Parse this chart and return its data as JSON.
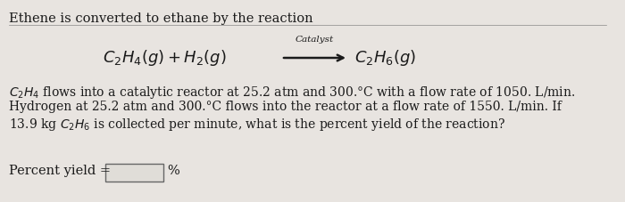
{
  "background_color": "#e8e4e0",
  "title_text": "Ethene is converted to ethane by the reaction",
  "catalyst": "Catalyst",
  "answer_label": "Percent yield =",
  "answer_unit": "%",
  "text_color": "#1a1a1a",
  "font_size_title": 10.5,
  "font_size_eq": 13,
  "font_size_catalyst": 7.5,
  "font_size_body": 10.0,
  "font_size_answer": 10.5,
  "eq_left": "$C_2H_4(g) + H_2(g)$",
  "eq_right": "$C_2H_6(g)$",
  "body_line1": " flows into a catalytic reactor at 25.2 atm and 300.°C with a flow rate of 1050. L/min.",
  "body_line2": "Hydrogen at 25.2 atm and 300.°C flows into the reactor at a flow rate of 1550. L/min. If",
  "body_line3_pre": "13.9 kg ",
  "body_line3_mid": " is collected per minute, what is the percent yield of the reaction?"
}
